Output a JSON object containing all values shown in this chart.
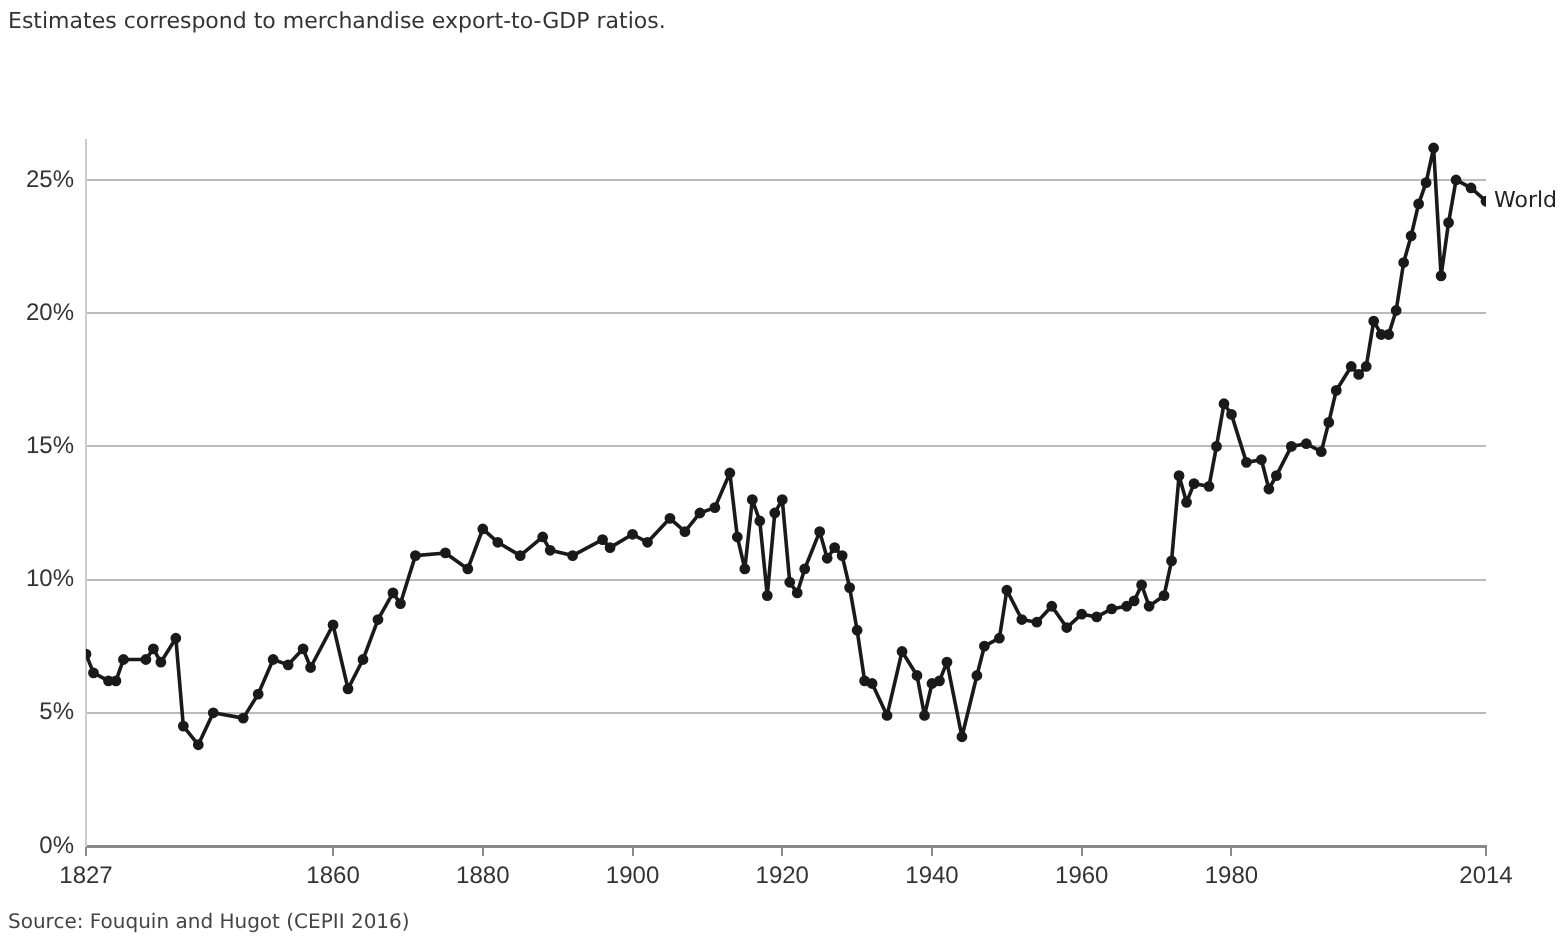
{
  "chart_data": {
    "type": "line",
    "subtitle": "Estimates correspond to merchandise export-to-GDP ratios.",
    "annotations": [
      "Source: Fouquin and Hugot (CEPII 2016)"
    ],
    "x": [
      1827,
      1828,
      1830,
      1831,
      1832,
      1835,
      1836,
      1837,
      1839,
      1840,
      1842,
      1844,
      1848,
      1850,
      1852,
      1854,
      1856,
      1857,
      1860,
      1862,
      1864,
      1866,
      1868,
      1869,
      1871,
      1875,
      1878,
      1880,
      1882,
      1885,
      1888,
      1889,
      1892,
      1896,
      1897,
      1900,
      1902,
      1905,
      1907,
      1909,
      1911,
      1913,
      1914,
      1915,
      1916,
      1917,
      1918,
      1919,
      1920,
      1921,
      1922,
      1923,
      1925,
      1926,
      1927,
      1928,
      1929,
      1930,
      1931,
      1932,
      1934,
      1936,
      1938,
      1939,
      1940,
      1941,
      1942,
      1944,
      1946,
      1947,
      1949,
      1950,
      1952,
      1954,
      1956,
      1958,
      1960,
      1962,
      1964,
      1966,
      1967,
      1968,
      1969,
      1971,
      1972,
      1973,
      1974,
      1975,
      1977,
      1978,
      1979,
      1980,
      1982,
      1984,
      1985,
      1986,
      1988,
      1990,
      1992,
      1993,
      1994,
      1996,
      1997,
      1998,
      1999,
      2000,
      2001,
      2002,
      2003,
      2004,
      2005,
      2006,
      2007,
      2008,
      2009,
      2010,
      2012,
      2014
    ],
    "series": [
      {
        "name": "World",
        "color": "#1a1a1a",
        "values": [
          7.2,
          6.5,
          6.2,
          6.2,
          7.0,
          7.0,
          7.4,
          6.9,
          7.8,
          4.5,
          3.8,
          5.0,
          4.8,
          5.7,
          7.0,
          6.8,
          7.4,
          6.7,
          8.3,
          5.9,
          7.0,
          8.5,
          9.5,
          9.1,
          10.9,
          11.0,
          10.4,
          11.9,
          11.4,
          10.9,
          11.6,
          11.1,
          10.9,
          11.5,
          11.2,
          11.7,
          11.4,
          12.3,
          11.8,
          12.5,
          12.7,
          14.0,
          11.6,
          10.4,
          13.0,
          12.2,
          9.4,
          12.5,
          13.0,
          9.9,
          9.5,
          10.4,
          11.8,
          10.8,
          11.2,
          10.9,
          9.7,
          8.1,
          6.2,
          6.1,
          4.9,
          7.3,
          6.4,
          4.9,
          6.1,
          6.2,
          6.9,
          4.1,
          6.4,
          7.5,
          7.8,
          9.6,
          8.5,
          8.4,
          9.0,
          8.2,
          8.7,
          8.6,
          8.9,
          9.0,
          9.2,
          9.8,
          9.0,
          9.4,
          10.7,
          13.9,
          12.9,
          13.6,
          13.5,
          15.0,
          16.6,
          16.2,
          14.4,
          14.5,
          13.4,
          13.9,
          15.0,
          15.1,
          14.8,
          15.9,
          17.1,
          18.0,
          17.7,
          18.0,
          19.7,
          19.2,
          19.2,
          20.1,
          21.9,
          22.9,
          24.1,
          24.9,
          26.2,
          21.4,
          23.4,
          25.0,
          24.7,
          24.2
        ]
      }
    ],
    "xlim": [
      1827,
      2014
    ],
    "xticks": [
      1827,
      1860,
      1880,
      1900,
      1920,
      1940,
      1960,
      1980,
      2014
    ],
    "ylim": [
      0,
      26.5
    ],
    "yticks": [
      {
        "value": 0,
        "label": "0%"
      },
      {
        "value": 5,
        "label": "5%"
      },
      {
        "value": 10,
        "label": "10%"
      },
      {
        "value": 15,
        "label": "15%"
      },
      {
        "value": 20,
        "label": "20%"
      },
      {
        "value": 25,
        "label": "25%"
      }
    ],
    "grid": "y",
    "marker": "circle",
    "line_style": "solid",
    "legend": false
  }
}
